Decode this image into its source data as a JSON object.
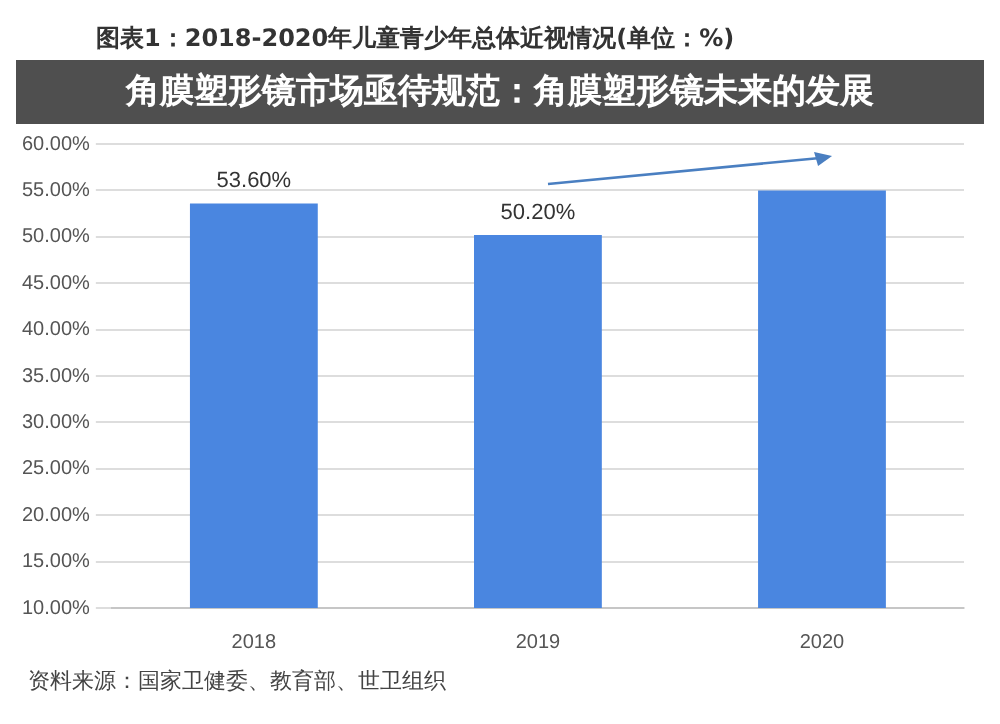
{
  "chart_data": {
    "type": "bar",
    "title": "图表1：2018-2020年儿童青少年总体近视情况(单位：%)",
    "subtitle": "角膜塑形镜市场亟待规范：角膜塑形镜未来的发展",
    "categories": [
      "2018",
      "2019",
      "2020"
    ],
    "values": [
      53.6,
      50.2,
      55.0
    ],
    "value_labels": [
      "53.60%",
      "50.20%",
      null
    ],
    "color": "#4a86e0",
    "ylim": [
      10,
      60
    ],
    "yticks": [
      {
        "value": 10,
        "label": "10.00%"
      },
      {
        "value": 15,
        "label": "15.00%"
      },
      {
        "value": 20,
        "label": "20.00%"
      },
      {
        "value": 25,
        "label": "25.00%"
      },
      {
        "value": 30,
        "label": "30.00%"
      },
      {
        "value": 35,
        "label": "35.00%"
      },
      {
        "value": 40,
        "label": "40.00%"
      },
      {
        "value": 45,
        "label": "45.00%"
      },
      {
        "value": 50,
        "label": "50.00%"
      },
      {
        "value": 55,
        "label": "55.00%"
      },
      {
        "value": 60,
        "label": "60.00%"
      }
    ],
    "grid": "y",
    "legend": false,
    "annotations": [
      "资料来源：国家卫健委、教育部、世卫组织"
    ]
  }
}
